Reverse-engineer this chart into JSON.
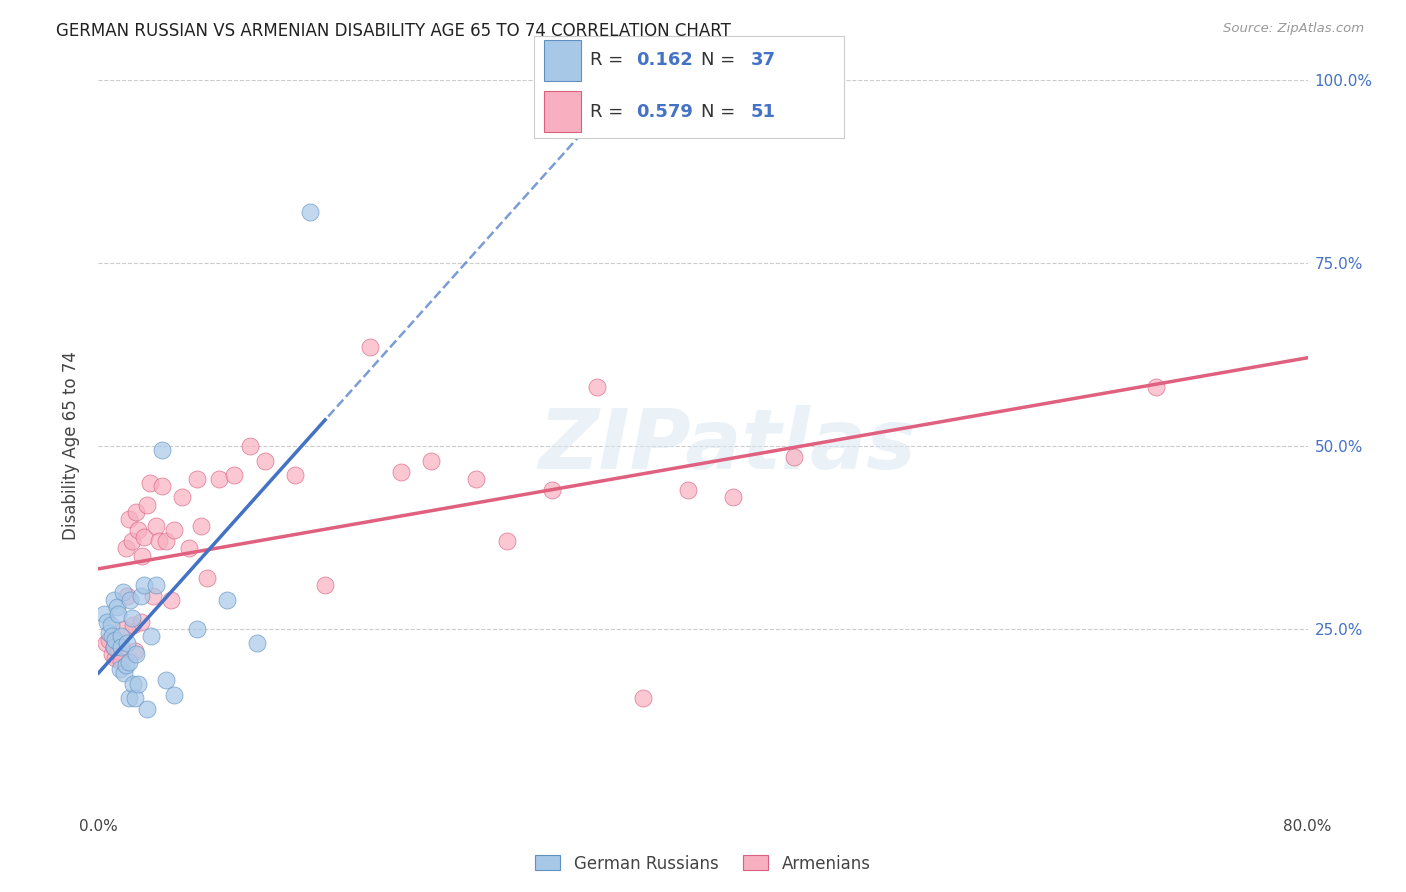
{
  "title": "GERMAN RUSSIAN VS ARMENIAN DISABILITY AGE 65 TO 74 CORRELATION CHART",
  "source": "Source: ZipAtlas.com",
  "ylabel": "Disability Age 65 to 74",
  "xlim": [
    0.0,
    0.8
  ],
  "ylim": [
    0.0,
    1.0
  ],
  "xtick_positions": [
    0.0,
    0.1,
    0.2,
    0.3,
    0.4,
    0.5,
    0.6,
    0.7,
    0.8
  ],
  "xticklabels": [
    "0.0%",
    "",
    "",
    "",
    "",
    "",
    "",
    "",
    "80.0%"
  ],
  "ytick_positions": [
    0.0,
    0.25,
    0.5,
    0.75,
    1.0
  ],
  "yticklabels_right": [
    "",
    "25.0%",
    "50.0%",
    "75.0%",
    "100.0%"
  ],
  "gr_face": "#a8c8e8",
  "gr_edge": "#6090c0",
  "arm_face": "#f8b0c0",
  "arm_edge": "#d86080",
  "gr_trend_color": "#4472c4",
  "arm_trend_color": "#e06080",
  "legend_text_color": "#4472c4",
  "legend_R_german": "0.162",
  "legend_N_german": "37",
  "legend_R_armenian": "0.579",
  "legend_N_armenian": "51",
  "watermark": "ZIPatlas",
  "legend_label_german": "German Russians",
  "legend_label_armenian": "Armenians",
  "german_russian_x": [
    0.004,
    0.006,
    0.007,
    0.008,
    0.009,
    0.01,
    0.01,
    0.011,
    0.012,
    0.013,
    0.014,
    0.015,
    0.015,
    0.016,
    0.017,
    0.018,
    0.019,
    0.02,
    0.02,
    0.021,
    0.022,
    0.023,
    0.024,
    0.025,
    0.026,
    0.028,
    0.03,
    0.032,
    0.035,
    0.038,
    0.042,
    0.045,
    0.05,
    0.065,
    0.085,
    0.105,
    0.14
  ],
  "german_russian_y": [
    0.27,
    0.26,
    0.245,
    0.255,
    0.24,
    0.29,
    0.225,
    0.235,
    0.28,
    0.27,
    0.195,
    0.24,
    0.225,
    0.3,
    0.19,
    0.2,
    0.23,
    0.205,
    0.155,
    0.29,
    0.265,
    0.175,
    0.155,
    0.215,
    0.175,
    0.295,
    0.31,
    0.14,
    0.24,
    0.31,
    0.495,
    0.18,
    0.16,
    0.25,
    0.29,
    0.23,
    0.82
  ],
  "armenian_x": [
    0.005,
    0.007,
    0.009,
    0.01,
    0.011,
    0.013,
    0.015,
    0.017,
    0.018,
    0.019,
    0.02,
    0.022,
    0.023,
    0.024,
    0.025,
    0.026,
    0.028,
    0.029,
    0.03,
    0.032,
    0.034,
    0.036,
    0.038,
    0.04,
    0.042,
    0.045,
    0.048,
    0.05,
    0.055,
    0.06,
    0.065,
    0.068,
    0.072,
    0.08,
    0.09,
    0.1,
    0.11,
    0.13,
    0.15,
    0.18,
    0.2,
    0.22,
    0.25,
    0.27,
    0.3,
    0.33,
    0.36,
    0.39,
    0.42,
    0.46,
    0.7
  ],
  "armenian_y": [
    0.23,
    0.235,
    0.215,
    0.225,
    0.21,
    0.22,
    0.205,
    0.25,
    0.36,
    0.295,
    0.4,
    0.37,
    0.255,
    0.22,
    0.41,
    0.385,
    0.26,
    0.35,
    0.375,
    0.42,
    0.45,
    0.295,
    0.39,
    0.37,
    0.445,
    0.37,
    0.29,
    0.385,
    0.43,
    0.36,
    0.455,
    0.39,
    0.32,
    0.455,
    0.46,
    0.5,
    0.48,
    0.46,
    0.31,
    0.635,
    0.465,
    0.48,
    0.455,
    0.37,
    0.44,
    0.58,
    0.155,
    0.44,
    0.43,
    0.485,
    0.58
  ]
}
